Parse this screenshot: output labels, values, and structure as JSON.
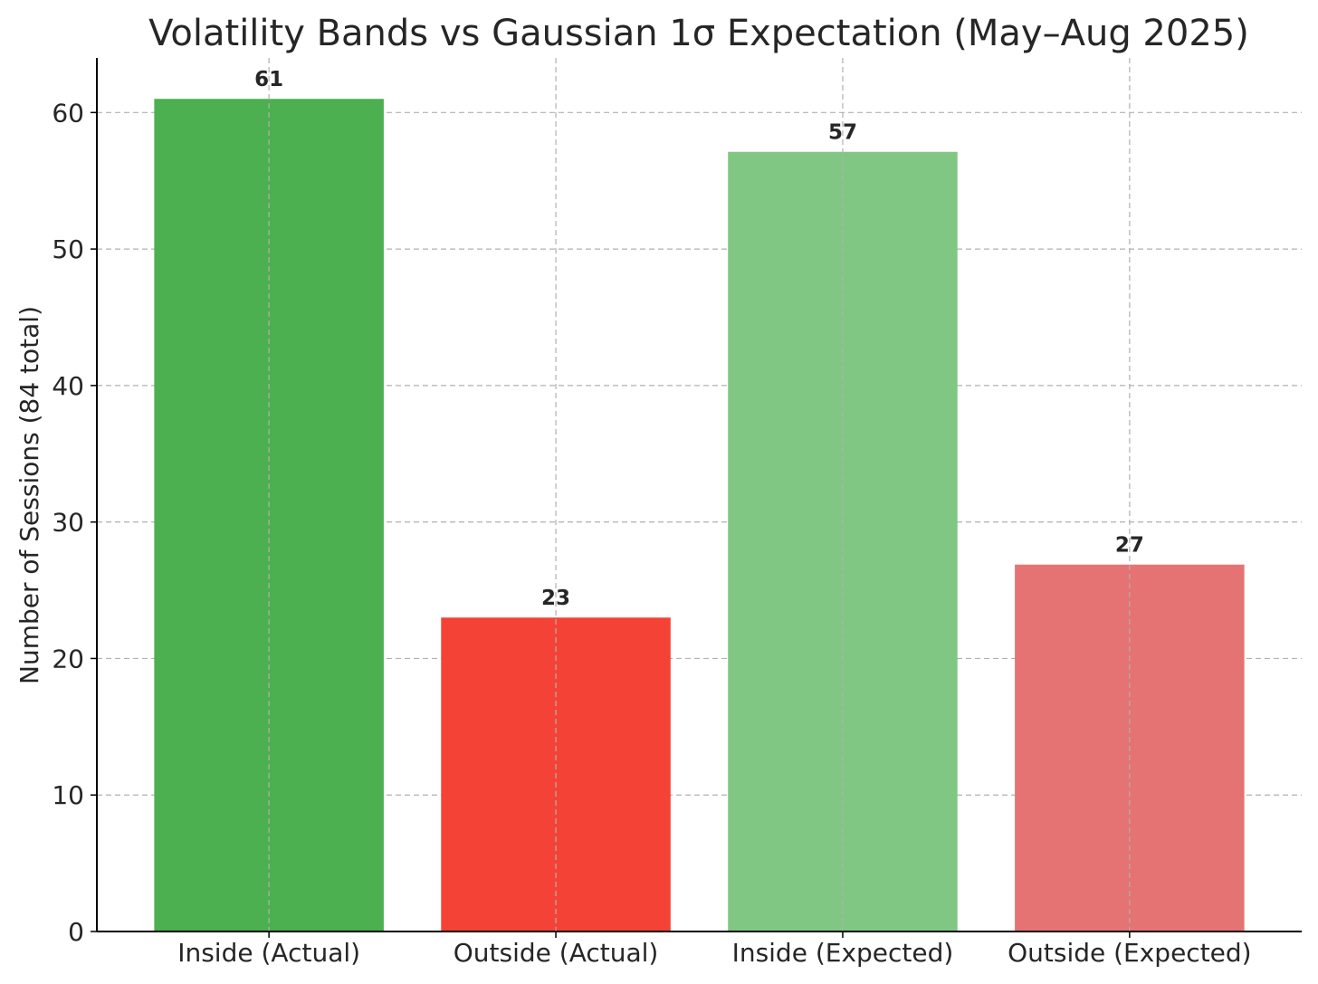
{
  "chart_data": {
    "type": "bar",
    "title": "Volatility Bands vs Gaussian 1σ Expectation (May–Aug 2025)",
    "xlabel": "",
    "ylabel": "Number of Sessions (84 total)",
    "categories": [
      "Inside (Actual)",
      "Outside (Actual)",
      "Inside (Expected)",
      "Outside (Expected)"
    ],
    "values": [
      61,
      23,
      57.12,
      26.88
    ],
    "value_labels": [
      "61",
      "23",
      "57",
      "27"
    ],
    "colors": [
      "#4caf50",
      "#f44336",
      "#81c784",
      "#e57373"
    ],
    "ylim": [
      0,
      64
    ],
    "yticks": [
      0,
      10,
      20,
      30,
      40,
      50,
      60
    ],
    "grid": true,
    "legend": "none"
  }
}
